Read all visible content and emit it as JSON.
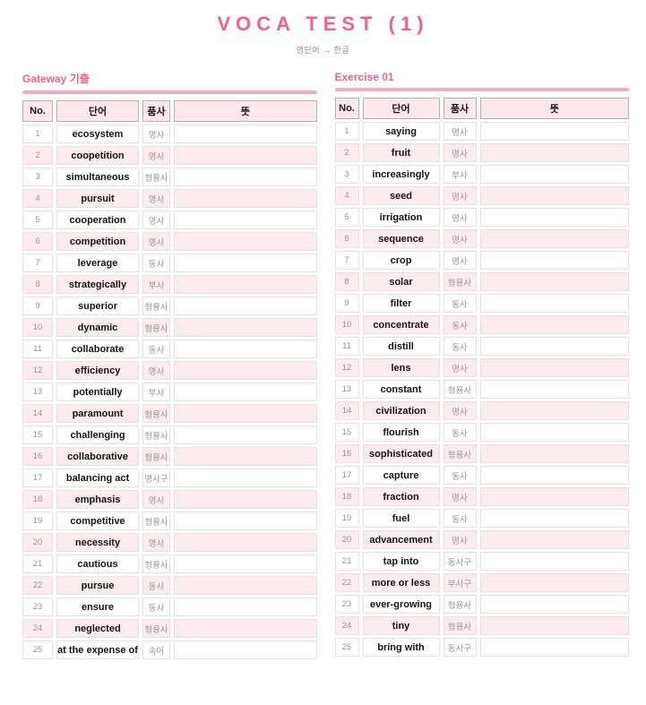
{
  "page": {
    "title": "VOCA TEST (1)",
    "subtitle": "영단어 → 한글"
  },
  "colors": {
    "accent_pink": "#f2618e",
    "underline_pink": "#f3abc2",
    "header_row_pink": "#fce7ea",
    "alt_row_pink": "#fdecee",
    "cell_border": "#e3e3e3",
    "header_border": "#b3b3b3",
    "muted_text": "#959595",
    "dark_text": "#141414"
  },
  "columns": [
    "No.",
    "단어",
    "품사",
    "뜻"
  ],
  "tables": [
    {
      "title": "Gateway 기출",
      "rows": [
        {
          "no": 1,
          "word": "ecosystem",
          "pos": "명사",
          "meaning": ""
        },
        {
          "no": 2,
          "word": "coopetition",
          "pos": "명사",
          "meaning": ""
        },
        {
          "no": 3,
          "word": "simultaneous",
          "pos": "형용사",
          "meaning": ""
        },
        {
          "no": 4,
          "word": "pursuit",
          "pos": "명사",
          "meaning": ""
        },
        {
          "no": 5,
          "word": "cooperation",
          "pos": "명사",
          "meaning": ""
        },
        {
          "no": 6,
          "word": "competition",
          "pos": "명사",
          "meaning": ""
        },
        {
          "no": 7,
          "word": "leverage",
          "pos": "동사",
          "meaning": ""
        },
        {
          "no": 8,
          "word": "strategically",
          "pos": "부사",
          "meaning": ""
        },
        {
          "no": 9,
          "word": "superior",
          "pos": "형용사",
          "meaning": ""
        },
        {
          "no": 10,
          "word": "dynamic",
          "pos": "형용사",
          "meaning": ""
        },
        {
          "no": 11,
          "word": "collaborate",
          "pos": "동사",
          "meaning": ""
        },
        {
          "no": 12,
          "word": "efficiency",
          "pos": "명사",
          "meaning": ""
        },
        {
          "no": 13,
          "word": "potentially",
          "pos": "부사",
          "meaning": ""
        },
        {
          "no": 14,
          "word": "paramount",
          "pos": "형용사",
          "meaning": ""
        },
        {
          "no": 15,
          "word": "challenging",
          "pos": "형용사",
          "meaning": ""
        },
        {
          "no": 16,
          "word": "collaborative",
          "pos": "형용사",
          "meaning": ""
        },
        {
          "no": 17,
          "word": "balancing act",
          "pos": "명사구",
          "meaning": ""
        },
        {
          "no": 18,
          "word": "emphasis",
          "pos": "명사",
          "meaning": ""
        },
        {
          "no": 19,
          "word": "competitive",
          "pos": "형용사",
          "meaning": ""
        },
        {
          "no": 20,
          "word": "necessity",
          "pos": "명사",
          "meaning": ""
        },
        {
          "no": 21,
          "word": "cautious",
          "pos": "형용사",
          "meaning": ""
        },
        {
          "no": 22,
          "word": "pursue",
          "pos": "동사",
          "meaning": ""
        },
        {
          "no": 23,
          "word": "ensure",
          "pos": "동사",
          "meaning": ""
        },
        {
          "no": 24,
          "word": "neglected",
          "pos": "형용사",
          "meaning": ""
        },
        {
          "no": 25,
          "word": "at the expense of",
          "pos": "숙어",
          "meaning": ""
        }
      ]
    },
    {
      "title": "Exercise 01",
      "rows": [
        {
          "no": 1,
          "word": "saying",
          "pos": "명사",
          "meaning": ""
        },
        {
          "no": 2,
          "word": "fruit",
          "pos": "명사",
          "meaning": ""
        },
        {
          "no": 3,
          "word": "increasingly",
          "pos": "부사",
          "meaning": ""
        },
        {
          "no": 4,
          "word": "seed",
          "pos": "명사",
          "meaning": ""
        },
        {
          "no": 5,
          "word": "irrigation",
          "pos": "명사",
          "meaning": ""
        },
        {
          "no": 6,
          "word": "sequence",
          "pos": "명사",
          "meaning": ""
        },
        {
          "no": 7,
          "word": "crop",
          "pos": "명사",
          "meaning": ""
        },
        {
          "no": 8,
          "word": "solar",
          "pos": "형용사",
          "meaning": ""
        },
        {
          "no": 9,
          "word": "filter",
          "pos": "동사",
          "meaning": ""
        },
        {
          "no": 10,
          "word": "concentrate",
          "pos": "동사",
          "meaning": ""
        },
        {
          "no": 11,
          "word": "distill",
          "pos": "동사",
          "meaning": ""
        },
        {
          "no": 12,
          "word": "lens",
          "pos": "명사",
          "meaning": ""
        },
        {
          "no": 13,
          "word": "constant",
          "pos": "형용사",
          "meaning": ""
        },
        {
          "no": 14,
          "word": "civilization",
          "pos": "명사",
          "meaning": ""
        },
        {
          "no": 15,
          "word": "flourish",
          "pos": "동사",
          "meaning": ""
        },
        {
          "no": 16,
          "word": "sophisticated",
          "pos": "형용사",
          "meaning": ""
        },
        {
          "no": 17,
          "word": "capture",
          "pos": "동사",
          "meaning": ""
        },
        {
          "no": 18,
          "word": "fraction",
          "pos": "명사",
          "meaning": ""
        },
        {
          "no": 19,
          "word": "fuel",
          "pos": "동사",
          "meaning": ""
        },
        {
          "no": 20,
          "word": "advancement",
          "pos": "명사",
          "meaning": ""
        },
        {
          "no": 21,
          "word": "tap into",
          "pos": "동사구",
          "meaning": ""
        },
        {
          "no": 22,
          "word": "more or less",
          "pos": "부사구",
          "meaning": ""
        },
        {
          "no": 23,
          "word": "ever-growing",
          "pos": "형용사",
          "meaning": ""
        },
        {
          "no": 24,
          "word": "tiny",
          "pos": "형용사",
          "meaning": ""
        },
        {
          "no": 25,
          "word": "bring with",
          "pos": "동사구",
          "meaning": ""
        }
      ]
    }
  ]
}
